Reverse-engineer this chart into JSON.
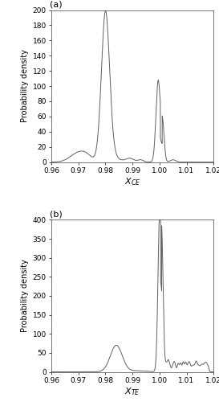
{
  "xlim": [
    0.96,
    1.02
  ],
  "xlabel_a": "$X_{CE}$",
  "xlabel_b": "$X_{TE}$",
  "ylabel": "Probability density",
  "ylim_a": [
    0,
    200
  ],
  "ylim_b": [
    0,
    400
  ],
  "yticks_a": [
    0,
    20,
    40,
    60,
    80,
    100,
    120,
    140,
    160,
    180,
    200
  ],
  "yticks_b": [
    0,
    50,
    100,
    150,
    200,
    250,
    300,
    350,
    400
  ],
  "xticks": [
    0.96,
    0.97,
    0.98,
    0.99,
    1.0,
    1.01,
    1.02
  ],
  "label_a": "(a)",
  "label_b": "(b)",
  "line_color": "#606060",
  "line_width": 0.7,
  "fig_width": 2.73,
  "fig_height": 5.0,
  "dpi": 100
}
